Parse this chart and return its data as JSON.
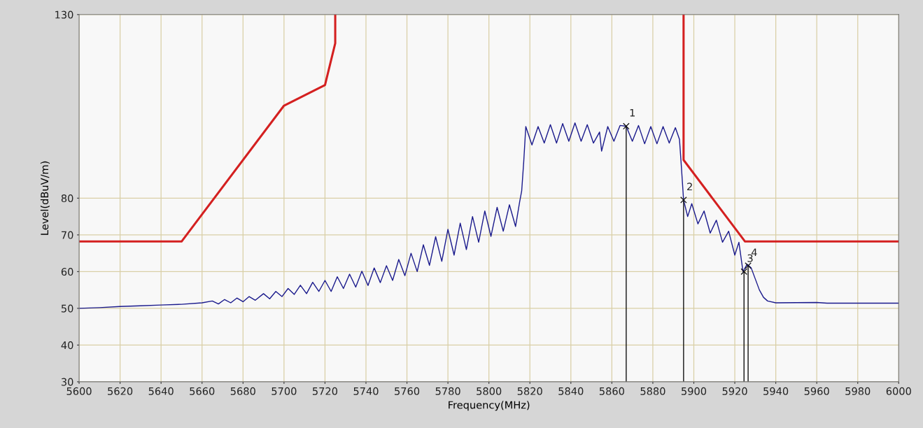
{
  "chart_data": {
    "type": "line",
    "xlabel": "Frequency(MHz)",
    "ylabel": "Level(dBuV/m)",
    "xlim": [
      5600,
      6000
    ],
    "xticks": [
      5600,
      5620,
      5640,
      5660,
      5680,
      5700,
      5720,
      5740,
      5760,
      5780,
      5800,
      5820,
      5840,
      5860,
      5880,
      5900,
      5920,
      5940,
      5960,
      5980,
      6000
    ],
    "ylim": [
      30,
      130
    ],
    "yticks": [
      30,
      40,
      50,
      60,
      70,
      80,
      130
    ],
    "grid": true,
    "marker": "none",
    "line_style": "solid",
    "series": [
      {
        "color": "#1a1a8c",
        "x": [
          5600,
          5610,
          5620,
          5630,
          5640,
          5650,
          5660,
          5665,
          5668,
          5671,
          5674,
          5677,
          5680,
          5683,
          5686,
          5690,
          5693,
          5696,
          5699,
          5702,
          5705,
          5708,
          5711,
          5714,
          5717,
          5720,
          5723,
          5726,
          5729,
          5732,
          5735,
          5738,
          5741,
          5744,
          5747,
          5750,
          5753,
          5756,
          5759,
          5762,
          5765,
          5768,
          5771,
          5774,
          5777,
          5780,
          5783,
          5786,
          5789,
          5792,
          5795,
          5798,
          5801,
          5804,
          5807,
          5810,
          5813,
          5815,
          5816,
          5817,
          5818,
          5821,
          5824,
          5827,
          5830,
          5833,
          5836,
          5839,
          5842,
          5845,
          5848,
          5851,
          5854,
          5855,
          5858,
          5861,
          5864,
          5867,
          5870,
          5873,
          5876,
          5879,
          5882,
          5885,
          5888,
          5891,
          5893,
          5894,
          5895,
          5897,
          5899,
          5902,
          5905,
          5908,
          5911,
          5914,
          5917,
          5920,
          5922,
          5924,
          5926,
          5928,
          5930,
          5932,
          5934,
          5936,
          5940,
          5960,
          5965,
          6000
        ],
        "values": [
          50.0,
          50.2,
          50.5,
          50.7,
          50.9,
          51.1,
          51.5,
          52.0,
          51.2,
          52.4,
          51.5,
          52.8,
          51.8,
          53.2,
          52.2,
          54.0,
          52.6,
          54.6,
          53.2,
          55.4,
          53.8,
          56.3,
          54.0,
          57.1,
          54.6,
          57.6,
          54.6,
          58.6,
          55.4,
          59.3,
          55.8,
          60.1,
          56.2,
          61.0,
          57.0,
          61.6,
          57.6,
          63.3,
          58.9,
          65.0,
          60.0,
          67.3,
          61.7,
          69.5,
          62.8,
          71.5,
          64.5,
          73.2,
          66.0,
          75.0,
          68.0,
          76.5,
          69.6,
          77.5,
          71.0,
          78.2,
          72.3,
          79.0,
          82,
          90,
          99.5,
          94.5,
          99.5,
          95,
          100,
          95,
          100.3,
          95.5,
          100.5,
          95.5,
          100,
          95,
          98,
          92.8,
          99.5,
          95.5,
          99.8,
          99.6,
          95.5,
          99.8,
          94.8,
          99.5,
          94.8,
          99.5,
          95,
          99.2,
          96,
          88,
          79.5,
          75,
          78.5,
          73,
          76.5,
          70.5,
          74,
          68,
          71,
          64.5,
          68,
          60,
          62,
          61,
          58,
          55,
          53,
          52,
          51.5,
          51.6,
          51.4,
          51.4
        ]
      },
      {
        "color": "#d42020",
        "x": [
          5600,
          5650,
          5700,
          5720,
          5725,
          5725
        ],
        "values": [
          68.2,
          68.2,
          105.2,
          110.8,
          122.2,
          130
        ]
      },
      {
        "color": "#d42020",
        "x": [
          5895,
          5895,
          5925,
          6000
        ],
        "values": [
          130,
          90.4,
          68.2,
          68.2
        ]
      }
    ],
    "annotations": [
      {
        "text": "1",
        "x": 5867,
        "y": 99.6
      },
      {
        "text": "2",
        "x": 5895,
        "y": 79.5
      },
      {
        "text": "3",
        "x": 5924.5,
        "y": 60
      },
      {
        "text": "4",
        "x": 5926.5,
        "y": 61.6
      }
    ]
  }
}
